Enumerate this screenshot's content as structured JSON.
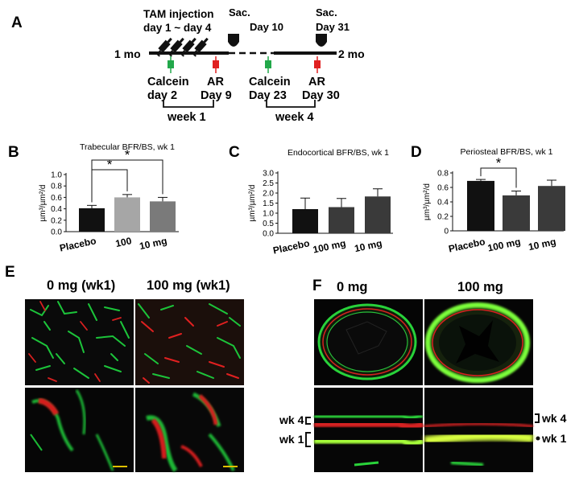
{
  "panels": {
    "a": "A",
    "b": "B",
    "c": "C",
    "d": "D",
    "e": "E",
    "f": "F"
  },
  "timeline": {
    "tam_line1": "TAM injection",
    "tam_line2": "day 1 ~ day 4",
    "sac1_line1": "Sac.",
    "sac1_line2": "Day 10",
    "sac2_line1": "Sac.",
    "sac2_line2": "Day 31",
    "start": "1 mo",
    "end": "2 mo",
    "calcein1_line1": "Calcein",
    "calcein1_line2": "day 2",
    "ar1_line1": "AR",
    "ar1_line2": "Day 9",
    "calcein2_line1": "Calcein",
    "calcein2_line2": "Day 23",
    "ar2_line1": "AR",
    "ar2_line2": "Day 30",
    "week1": "week 1",
    "week4": "week 4",
    "colors": {
      "calcein": "#22a84a",
      "ar": "#e02020",
      "syringe": "#111111"
    }
  },
  "chart_data": [
    {
      "type": "bar",
      "title": "Trabecular BFR/BS, wk 1",
      "ylabel": "µm³/µm²/d",
      "categories": [
        "Placebo",
        "100",
        "10 mg"
      ],
      "values": [
        0.41,
        0.6,
        0.53
      ],
      "errors": [
        0.05,
        0.05,
        0.07
      ],
      "colors": [
        "#111111",
        "#a6a6a6",
        "#7a7a7a"
      ],
      "ylim": [
        0,
        1.0
      ],
      "yticks": [
        "0.0",
        "0.2",
        "0.4",
        "0.6",
        "0.8",
        "1.0"
      ],
      "significance": [
        {
          "from": 0,
          "to": 1,
          "label": "*"
        },
        {
          "from": 0,
          "to": 2,
          "label": "*"
        }
      ]
    },
    {
      "type": "bar",
      "title": "Endocortical BFR/BS, wk 1",
      "ylabel": "µm³/µm²/d",
      "categories": [
        "Placebo",
        "100 mg",
        "10 mg"
      ],
      "values": [
        1.2,
        1.3,
        1.83
      ],
      "errors": [
        0.55,
        0.43,
        0.38
      ],
      "colors": [
        "#111111",
        "#3a3a3a",
        "#3a3a3a"
      ],
      "ylim": [
        0,
        3.0
      ],
      "yticks": [
        "0.0",
        "0.5",
        "1.0",
        "1.5",
        "2.0",
        "2.5",
        "3.0"
      ],
      "significance": []
    },
    {
      "type": "bar",
      "title": "Periosteal BFR/BS, wk 1",
      "ylabel": "µm³/µm²/d",
      "categories": [
        "Placebo",
        "100 mg",
        "10 mg"
      ],
      "values": [
        0.69,
        0.49,
        0.62
      ],
      "errors": [
        0.02,
        0.06,
        0.08
      ],
      "colors": [
        "#111111",
        "#3a3a3a",
        "#3a3a3a"
      ],
      "ylim": [
        0,
        0.8
      ],
      "yticks": [
        "0",
        "0.2",
        "0.4",
        "0.6",
        "0.8"
      ],
      "significance": [
        {
          "from": 0,
          "to": 1,
          "label": "*"
        }
      ]
    }
  ],
  "panel_e": {
    "col1": "0 mg (wk1)",
    "col2": "100 mg (wk1)"
  },
  "panel_f": {
    "col1": "0 mg",
    "col2": "100 mg",
    "wk4": "wk 4",
    "wk1": "wk 1",
    "wk4_right": "wk 4",
    "wk1_right": "wk 1"
  }
}
